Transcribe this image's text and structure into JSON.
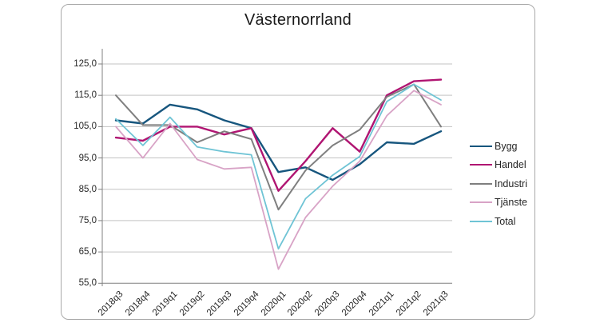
{
  "title": "Västernorrland",
  "chart_data": {
    "type": "line",
    "title": "Västernorrland",
    "categories": [
      "2018q3",
      "2018q4",
      "2019q1",
      "2019q2",
      "2019q3",
      "2019q4",
      "2020q1",
      "2020q2",
      "2020q3",
      "2020q4",
      "2021q1",
      "2021q2",
      "2021q3"
    ],
    "series": [
      {
        "name": "Bygg",
        "color": "#17567E",
        "values": [
          107,
          106,
          112,
          110.5,
          107,
          104.5,
          90.5,
          92,
          88,
          93,
          100,
          99.5,
          103.5
        ]
      },
      {
        "name": "Handel",
        "color": "#B01572",
        "values": [
          101.5,
          100.5,
          105,
          105,
          102.5,
          104.5,
          84.5,
          94,
          104.5,
          97,
          115,
          119.5,
          120
        ]
      },
      {
        "name": "Industri",
        "color": "#7F7F7F",
        "values": [
          115,
          105.5,
          105.5,
          100,
          103.5,
          101,
          78.5,
          91,
          99,
          104,
          114.5,
          118.5,
          105
        ]
      },
      {
        "name": "Tjänste",
        "color": "#D8A3C6",
        "values": [
          105,
          95,
          106,
          94.5,
          91.5,
          92,
          59.5,
          76,
          86,
          94,
          108.5,
          116.5,
          112
        ]
      },
      {
        "name": "Total",
        "color": "#6FC4D5",
        "values": [
          107.5,
          99,
          108,
          98.5,
          97,
          96,
          66,
          82,
          89.5,
          95.5,
          113,
          118.5,
          113.5
        ]
      }
    ],
    "ylim": [
      55,
      125
    ],
    "ytick_step": 10,
    "ytick_labels": [
      "125,0",
      "115,0",
      "105,0",
      "95,0",
      "85,0",
      "75,0",
      "65,0",
      "55,0"
    ],
    "xlabel": "",
    "ylabel": "",
    "grid": true,
    "legend_position": "right",
    "axis_color": "#808080",
    "gridline_color": "#C3C3C3"
  }
}
